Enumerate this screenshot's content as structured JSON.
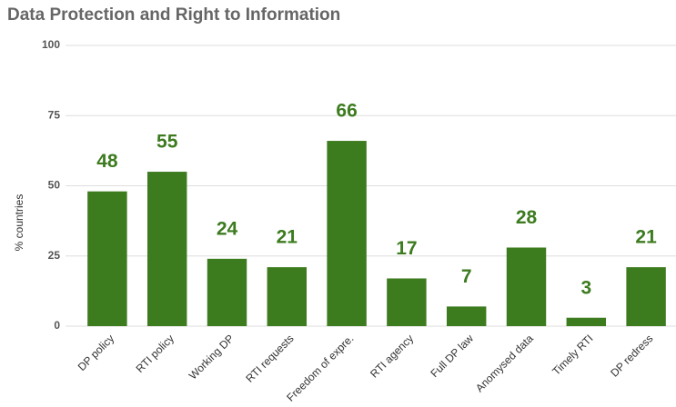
{
  "chart_data": {
    "type": "bar",
    "title": "Data Protection and Right to Information",
    "y_label": "% countries",
    "categories": [
      "DP policy",
      "RTI policy",
      "Working DP",
      "RTI requests",
      "Freedom of expre.",
      "RTI agency",
      "Full DP law",
      "Anomysed data",
      "Timely RTI",
      "DP redress"
    ],
    "values": [
      48,
      55,
      24,
      21,
      66,
      17,
      7,
      28,
      3,
      21
    ],
    "color": "#3d7b1f",
    "ylim": [
      0,
      100
    ],
    "yticks": [
      0,
      25,
      50,
      75,
      100
    ],
    "grid": true
  }
}
